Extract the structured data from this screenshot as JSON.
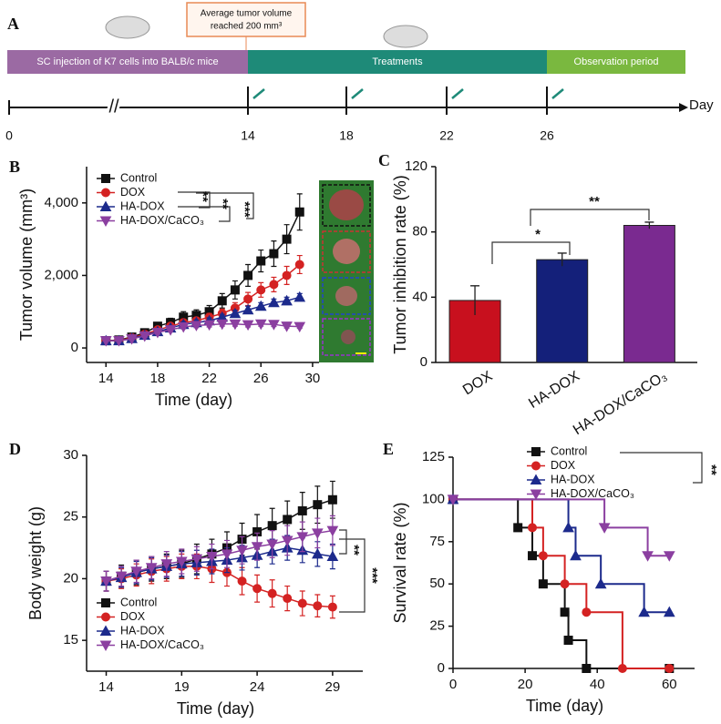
{
  "panel_a": {
    "label": "A",
    "phases": [
      "SC injection of K7 cells into BALB/c mice",
      "Treatments",
      "Observation period"
    ],
    "callout": [
      "Average tumor volume",
      "reached 200 mm³"
    ],
    "axis_labels": [
      "0",
      "14",
      "18",
      "22",
      "26"
    ],
    "break": "//",
    "unit": "Day"
  },
  "chart_data": [
    {
      "type": "line",
      "panel": "B",
      "x_label": "Time (day)",
      "y_label": "Tumor volume (mm³)",
      "legend": "upper-left",
      "x": [
        14,
        15,
        16,
        17,
        18,
        19,
        20,
        21,
        22,
        23,
        24,
        25,
        26,
        27,
        28,
        29
      ],
      "xlim": [
        12.5,
        30.5
      ],
      "xticks": [
        14,
        18,
        22,
        26,
        30
      ],
      "ylim": [
        -400,
        5000
      ],
      "yticks": [
        0,
        {
          "value": 2000,
          "label": "2,000"
        },
        {
          "value": 4000,
          "label": "4,000"
        }
      ],
      "series": [
        {
          "name": "Control",
          "color": "#111111",
          "marker": "square",
          "values": [
            200,
            220,
            300,
            420,
            600,
            700,
            850,
            900,
            1000,
            1300,
            1600,
            2000,
            2400,
            2600,
            3000,
            3750
          ],
          "errors": [
            30,
            40,
            50,
            80,
            100,
            120,
            150,
            150,
            170,
            200,
            250,
            300,
            300,
            350,
            400,
            500
          ]
        },
        {
          "name": "DOX",
          "color": "#d42222",
          "marker": "circle",
          "values": [
            200,
            210,
            280,
            380,
            500,
            600,
            700,
            750,
            850,
            950,
            1100,
            1350,
            1600,
            1750,
            2000,
            2300
          ],
          "errors": [
            30,
            30,
            40,
            50,
            60,
            70,
            80,
            90,
            100,
            120,
            150,
            180,
            200,
            200,
            250,
            250
          ]
        },
        {
          "name": "HA-DOX",
          "color": "#1c2a8c",
          "marker": "triangle-up",
          "values": [
            200,
            200,
            260,
            350,
            450,
            550,
            650,
            700,
            750,
            850,
            950,
            1050,
            1150,
            1250,
            1300,
            1400
          ],
          "errors": [
            20,
            30,
            40,
            50,
            50,
            60,
            70,
            70,
            80,
            80,
            90,
            100,
            100,
            100,
            100,
            100
          ]
        },
        {
          "name": "HA-DOX/CaCO₃",
          "color": "#8b3fa0",
          "marker": "triangle-down",
          "values": [
            200,
            200,
            250,
            330,
            430,
            500,
            580,
            620,
            640,
            660,
            660,
            640,
            660,
            650,
            600,
            590
          ],
          "errors": [
            20,
            30,
            30,
            40,
            50,
            50,
            50,
            60,
            60,
            60,
            60,
            60,
            60,
            60,
            50,
            50
          ]
        }
      ],
      "annotations": [
        "**",
        "**",
        "***"
      ]
    },
    {
      "type": "bar",
      "panel": "C",
      "y_label": "Tumor inhibition rate (%)",
      "categories": [
        "DOX",
        "HA-DOX",
        "HA-DOX/CaCO₃"
      ],
      "values": [
        38,
        63,
        84
      ],
      "errors": [
        9,
        4,
        2
      ],
      "colors": [
        "#c8101e",
        "#14207a",
        "#7a2a90"
      ],
      "ylim": [
        0,
        120
      ],
      "yticks": [
        0,
        40,
        80,
        120
      ],
      "annotations": [
        "*",
        "**"
      ]
    },
    {
      "type": "line",
      "panel": "D",
      "x_label": "Time (day)",
      "y_label": "Body weight (g)",
      "legend": "lower-left",
      "x": [
        14,
        15,
        16,
        17,
        18,
        19,
        20,
        21,
        22,
        23,
        24,
        25,
        26,
        27,
        28,
        29
      ],
      "xlim": [
        12.7,
        31
      ],
      "xticks": [
        14,
        19,
        24,
        29
      ],
      "ylim": [
        12.5,
        30
      ],
      "yticks": [
        15,
        20,
        25,
        30
      ],
      "series": [
        {
          "name": "Control",
          "color": "#111111",
          "marker": "square",
          "values": [
            19.8,
            20.2,
            20.5,
            20.8,
            21,
            21.2,
            21.6,
            22,
            22.5,
            23.2,
            23.8,
            24.3,
            24.8,
            25.5,
            26,
            26.4
          ],
          "errors": [
            0.8,
            0.9,
            1,
            1,
            1,
            1.1,
            1.2,
            1.2,
            1.3,
            1.3,
            1.4,
            1.4,
            1.5,
            1.5,
            1.5,
            1.5
          ]
        },
        {
          "name": "DOX",
          "color": "#d42222",
          "marker": "circle",
          "values": [
            19.8,
            20,
            20.3,
            20.6,
            20.8,
            21,
            21,
            20.8,
            20.5,
            19.8,
            19.2,
            18.8,
            18.4,
            18,
            17.8,
            17.7
          ],
          "errors": [
            0.8,
            0.8,
            0.9,
            1,
            1,
            1,
            1,
            1.1,
            1.1,
            1.1,
            1.1,
            1.1,
            1,
            1,
            0.9,
            0.9
          ]
        },
        {
          "name": "HA-DOX",
          "color": "#1c2a8c",
          "marker": "triangle-up",
          "values": [
            19.8,
            20.1,
            20.5,
            20.8,
            21,
            21.2,
            21.3,
            21.4,
            21.5,
            21.7,
            21.9,
            22.2,
            22.5,
            22.3,
            22,
            21.8
          ],
          "errors": [
            0.8,
            0.8,
            0.9,
            0.9,
            0.9,
            1,
            1,
            1,
            1,
            1,
            1,
            1,
            1,
            1,
            1,
            1
          ]
        },
        {
          "name": "HA-DOX/CaCO₃",
          "color": "#8b3fa0",
          "marker": "triangle-down",
          "values": [
            19.8,
            20.2,
            20.6,
            20.9,
            21.2,
            21.4,
            21.6,
            21.8,
            22,
            22.3,
            22.6,
            22.8,
            23.1,
            23.4,
            23.7,
            23.9
          ],
          "errors": [
            0.8,
            0.8,
            0.9,
            0.9,
            1,
            1,
            1,
            1,
            1.1,
            1.1,
            1.1,
            1.1,
            1.2,
            1.2,
            1.2,
            1.2
          ]
        }
      ],
      "annotations": [
        "**",
        "***"
      ]
    },
    {
      "type": "step",
      "panel": "E",
      "x_label": "Time (day)",
      "y_label": "Survival rate (%)",
      "legend": "upper-right",
      "xlim": [
        0,
        67
      ],
      "xticks": [
        0,
        20,
        40,
        60
      ],
      "ylim": [
        0,
        125
      ],
      "yticks": [
        0,
        25,
        50,
        75,
        100,
        125
      ],
      "series": [
        {
          "name": "Control",
          "color": "#111111",
          "marker": "square",
          "x": [
            0,
            18,
            22,
            25,
            31,
            32,
            37,
            60
          ],
          "values": [
            100,
            83.3,
            66.7,
            50,
            33.3,
            16.7,
            0,
            0
          ]
        },
        {
          "name": "DOX",
          "color": "#d42222",
          "marker": "circle",
          "x": [
            0,
            22,
            25,
            31,
            37,
            47,
            60
          ],
          "values": [
            100,
            83.3,
            66.7,
            50,
            33.3,
            0,
            0
          ]
        },
        {
          "name": "HA-DOX",
          "color": "#1c2a8c",
          "marker": "triangle-up",
          "x": [
            0,
            32,
            34,
            41,
            53,
            60
          ],
          "values": [
            100,
            83.3,
            66.7,
            50,
            33.3,
            33.3
          ]
        },
        {
          "name": "HA-DOX/CaCO₃",
          "color": "#8b3fa0",
          "marker": "triangle-down",
          "x": [
            0,
            42,
            54,
            60
          ],
          "values": [
            100,
            83.3,
            66.7,
            66.7
          ]
        }
      ],
      "annotations": [
        "**"
      ]
    }
  ]
}
